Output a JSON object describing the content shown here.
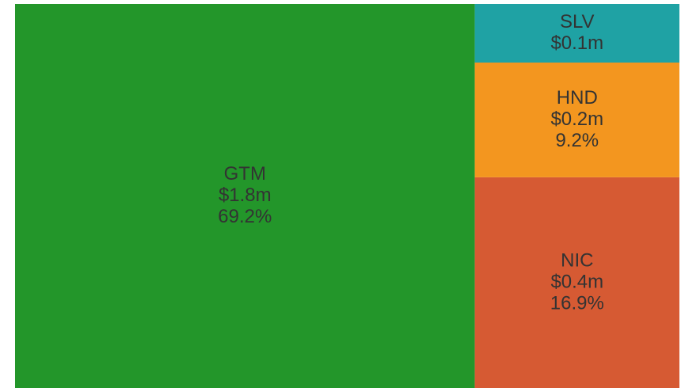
{
  "chart_data": {
    "type": "treemap",
    "categories": [
      "GTM",
      "NIC",
      "HND",
      "SLV"
    ],
    "values": [
      1.8,
      0.4,
      0.2,
      0.1
    ],
    "value_labels": [
      "$1.8m",
      "$0.4m",
      "$0.2m",
      "$0.1m"
    ],
    "shares": [
      69.2,
      16.9,
      9.2,
      4.7
    ],
    "share_labels": [
      "69.2%",
      "16.9%",
      "9.2%",
      null
    ],
    "colors": [
      "#23962a",
      "#d65a33",
      "#f3961f",
      "#1fa2a4"
    ]
  }
}
